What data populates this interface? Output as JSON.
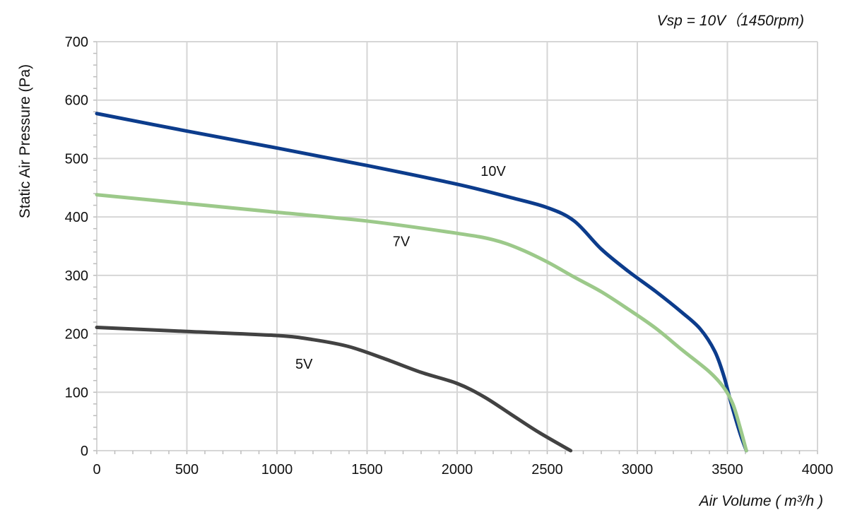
{
  "chart_data": {
    "type": "line",
    "subtitle": "Vsp = 10V（1450rpm)",
    "xlabel": "Air Volume ( m³/h )",
    "ylabel": "Static Air Pressure  (Pa)",
    "xlim": [
      0,
      4000
    ],
    "ylim": [
      0,
      700
    ],
    "x_ticks": [
      0,
      500,
      1000,
      1500,
      2000,
      2500,
      3000,
      3500,
      4000
    ],
    "y_ticks": [
      0,
      100,
      200,
      300,
      400,
      500,
      600,
      700
    ],
    "grid": true,
    "series": [
      {
        "name": "10V",
        "color": "#0c3c8c",
        "points": [
          [
            0,
            577
          ],
          [
            500,
            547
          ],
          [
            1000,
            518
          ],
          [
            1500,
            488
          ],
          [
            2000,
            456
          ],
          [
            2300,
            433
          ],
          [
            2500,
            416
          ],
          [
            2650,
            393
          ],
          [
            2800,
            345
          ],
          [
            2950,
            307
          ],
          [
            3100,
            273
          ],
          [
            3250,
            236
          ],
          [
            3350,
            208
          ],
          [
            3430,
            170
          ],
          [
            3480,
            128
          ],
          [
            3520,
            82
          ],
          [
            3570,
            30
          ],
          [
            3605,
            0
          ]
        ]
      },
      {
        "name": "7V",
        "color": "#9cc98a",
        "points": [
          [
            0,
            438
          ],
          [
            500,
            423
          ],
          [
            1000,
            408
          ],
          [
            1500,
            393
          ],
          [
            2000,
            372
          ],
          [
            2200,
            361
          ],
          [
            2350,
            345
          ],
          [
            2500,
            323
          ],
          [
            2650,
            297
          ],
          [
            2800,
            272
          ],
          [
            2950,
            242
          ],
          [
            3100,
            210
          ],
          [
            3250,
            172
          ],
          [
            3400,
            135
          ],
          [
            3480,
            108
          ],
          [
            3530,
            80
          ],
          [
            3570,
            40
          ],
          [
            3605,
            0
          ]
        ]
      },
      {
        "name": "5V",
        "color": "#424242",
        "points": [
          [
            0,
            211
          ],
          [
            500,
            204
          ],
          [
            1000,
            197
          ],
          [
            1200,
            190
          ],
          [
            1400,
            178
          ],
          [
            1600,
            157
          ],
          [
            1800,
            134
          ],
          [
            2000,
            115
          ],
          [
            2150,
            92
          ],
          [
            2300,
            62
          ],
          [
            2450,
            32
          ],
          [
            2630,
            0
          ]
        ]
      }
    ],
    "annotations": [
      {
        "text": "10V",
        "x": 2200,
        "y": 470
      },
      {
        "text": "7V",
        "x": 1690,
        "y": 350
      },
      {
        "text": "5V",
        "x": 1150,
        "y": 140
      }
    ]
  }
}
